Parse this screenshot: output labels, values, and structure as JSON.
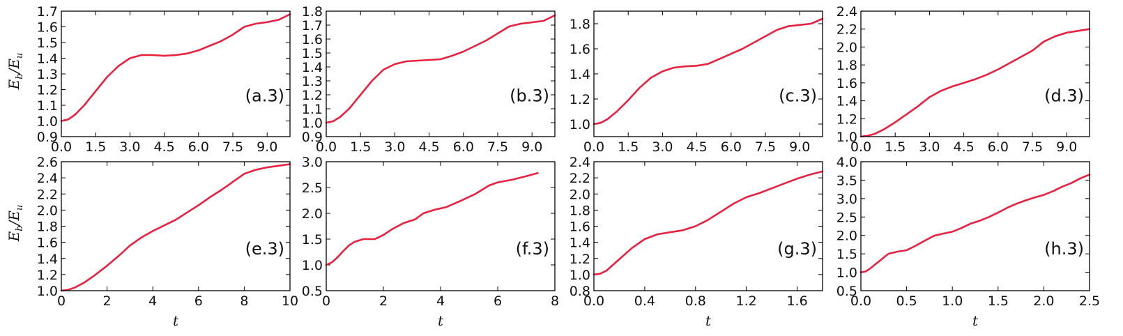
{
  "figure": {
    "ylabel": "E_b / E_u",
    "ylabel_main": "E",
    "ylabel_sub1": "b",
    "ylabel_sep": "/E",
    "ylabel_sub2": "u",
    "xlabel": "t",
    "line_color": "#e8213f",
    "frame_color": "#000000"
  },
  "chart_data": [
    {
      "type": "line",
      "panel": "(a.3)",
      "xlabel": "",
      "ylabel": "E_b/E_u",
      "xlim": [
        0,
        10
      ],
      "ylim": [
        0.9,
        1.7
      ],
      "xticks": [
        "0.0",
        "1.5",
        "3.0",
        "4.5",
        "6.0",
        "7.5",
        "9.0"
      ],
      "yticks": [
        "0.9",
        "1.0",
        "1.1",
        "1.2",
        "1.3",
        "1.4",
        "1.5",
        "1.6",
        "1.7"
      ],
      "x": [
        0,
        0.3,
        0.6,
        1,
        1.5,
        2,
        2.5,
        3,
        3.5,
        4,
        4.5,
        5,
        5.5,
        6,
        6.5,
        7,
        7.5,
        8,
        8.5,
        9,
        9.5,
        10
      ],
      "y": [
        1.0,
        1.01,
        1.04,
        1.1,
        1.19,
        1.28,
        1.35,
        1.4,
        1.42,
        1.42,
        1.415,
        1.42,
        1.43,
        1.45,
        1.48,
        1.51,
        1.55,
        1.6,
        1.62,
        1.63,
        1.645,
        1.68
      ]
    },
    {
      "type": "line",
      "panel": "(b.3)",
      "xlabel": "",
      "ylabel": "",
      "xlim": [
        0,
        10
      ],
      "ylim": [
        0.9,
        1.8
      ],
      "xticks": [
        "0.0",
        "1.5",
        "3.0",
        "4.5",
        "6.0",
        "7.5",
        "9.0"
      ],
      "yticks": [
        "0.9",
        "1.0",
        "1.1",
        "1.2",
        "1.3",
        "1.4",
        "1.5",
        "1.6",
        "1.7",
        "1.8"
      ],
      "x": [
        0,
        0.3,
        0.6,
        1,
        1.5,
        2,
        2.5,
        3,
        3.5,
        4,
        4.5,
        5,
        5.5,
        6,
        6.5,
        7,
        7.5,
        8,
        8.5,
        9,
        9.5,
        10
      ],
      "y": [
        1.0,
        1.01,
        1.04,
        1.1,
        1.2,
        1.3,
        1.38,
        1.42,
        1.44,
        1.445,
        1.45,
        1.455,
        1.48,
        1.51,
        1.55,
        1.59,
        1.64,
        1.69,
        1.71,
        1.72,
        1.73,
        1.77
      ]
    },
    {
      "type": "line",
      "panel": "(c.3)",
      "xlabel": "",
      "ylabel": "",
      "xlim": [
        0,
        10
      ],
      "ylim": [
        0.9,
        1.9
      ],
      "xticks": [
        "0.0",
        "1.5",
        "3.0",
        "4.5",
        "6.0",
        "7.5",
        "9.0"
      ],
      "yticks": [
        "1.0",
        "1.2",
        "1.4",
        "1.6",
        "1.8"
      ],
      "x": [
        0,
        0.3,
        0.6,
        1,
        1.5,
        2,
        2.5,
        3,
        3.5,
        4,
        4.5,
        5,
        5.5,
        6,
        6.5,
        7,
        7.5,
        8,
        8.5,
        9,
        9.5,
        10
      ],
      "y": [
        1.0,
        1.01,
        1.04,
        1.1,
        1.19,
        1.29,
        1.37,
        1.42,
        1.45,
        1.46,
        1.465,
        1.48,
        1.52,
        1.56,
        1.6,
        1.65,
        1.7,
        1.75,
        1.78,
        1.79,
        1.8,
        1.84
      ]
    },
    {
      "type": "line",
      "panel": "(d.3)",
      "xlabel": "",
      "ylabel": "",
      "xlim": [
        0,
        10
      ],
      "ylim": [
        1.0,
        2.4
      ],
      "xticks": [
        "0.0",
        "1.5",
        "3.0",
        "4.5",
        "6.0",
        "7.5",
        "9.0"
      ],
      "yticks": [
        "1.0",
        "1.2",
        "1.4",
        "1.6",
        "1.8",
        "2.0",
        "2.2",
        "2.4"
      ],
      "x": [
        0,
        0.3,
        0.6,
        1,
        1.5,
        2,
        2.5,
        3,
        3.5,
        4,
        4.5,
        5,
        5.5,
        6,
        6.5,
        7,
        7.5,
        8,
        8.5,
        9,
        9.5,
        10
      ],
      "y": [
        1.0,
        1.01,
        1.03,
        1.08,
        1.16,
        1.25,
        1.34,
        1.44,
        1.51,
        1.56,
        1.6,
        1.64,
        1.69,
        1.75,
        1.82,
        1.89,
        1.96,
        2.06,
        2.12,
        2.16,
        2.18,
        2.2
      ]
    },
    {
      "type": "line",
      "panel": "(e.3)",
      "xlabel": "t",
      "ylabel": "E_b/E_u",
      "xlim": [
        0,
        10
      ],
      "ylim": [
        1.0,
        2.6
      ],
      "xticks": [
        "0",
        "2",
        "4",
        "6",
        "8",
        "10"
      ],
      "yticks": [
        "1.0",
        "1.2",
        "1.4",
        "1.6",
        "1.8",
        "2.0",
        "2.2",
        "2.4",
        "2.6"
      ],
      "x": [
        0,
        0.3,
        0.6,
        1,
        1.5,
        2,
        2.5,
        3,
        3.5,
        4,
        4.5,
        5,
        5.5,
        6,
        6.5,
        7,
        7.5,
        8,
        8.5,
        9,
        9.5,
        10
      ],
      "y": [
        1.0,
        1.01,
        1.04,
        1.1,
        1.2,
        1.31,
        1.43,
        1.56,
        1.66,
        1.74,
        1.81,
        1.88,
        1.97,
        2.06,
        2.16,
        2.25,
        2.35,
        2.45,
        2.5,
        2.53,
        2.55,
        2.57
      ]
    },
    {
      "type": "line",
      "panel": "(f.3)",
      "xlabel": "t",
      "ylabel": "",
      "xlim": [
        0,
        8
      ],
      "ylim": [
        0.5,
        3.0
      ],
      "xticks": [
        "0",
        "2",
        "4",
        "6",
        "8"
      ],
      "yticks": [
        "0.5",
        "1.0",
        "1.5",
        "2.0",
        "2.5",
        "3.0"
      ],
      "x": [
        0,
        0.2,
        0.4,
        0.6,
        0.8,
        1,
        1.3,
        1.7,
        2,
        2.3,
        2.7,
        3.1,
        3.4,
        3.8,
        4.2,
        4.7,
        5.2,
        5.7,
        6,
        6.5,
        7,
        7.4
      ],
      "y": [
        1.0,
        1.05,
        1.15,
        1.27,
        1.38,
        1.45,
        1.5,
        1.5,
        1.58,
        1.69,
        1.81,
        1.88,
        2.0,
        2.07,
        2.12,
        2.24,
        2.37,
        2.54,
        2.6,
        2.65,
        2.72,
        2.78
      ]
    },
    {
      "type": "line",
      "panel": "(g.3)",
      "xlabel": "t",
      "ylabel": "",
      "xlim": [
        0,
        1.8
      ],
      "ylim": [
        0.8,
        2.4
      ],
      "xticks": [
        "0.0",
        "0.4",
        "0.8",
        "1.2",
        "1.6"
      ],
      "yticks": [
        "0.8",
        "1.0",
        "1.2",
        "1.4",
        "1.6",
        "1.8",
        "2.0",
        "2.2",
        "2.4"
      ],
      "x": [
        0,
        0.05,
        0.1,
        0.2,
        0.3,
        0.4,
        0.5,
        0.6,
        0.7,
        0.8,
        0.9,
        1.0,
        1.1,
        1.2,
        1.3,
        1.4,
        1.5,
        1.6,
        1.7,
        1.8
      ],
      "y": [
        1.0,
        1.01,
        1.05,
        1.19,
        1.33,
        1.44,
        1.5,
        1.525,
        1.55,
        1.6,
        1.68,
        1.78,
        1.88,
        1.96,
        2.01,
        2.07,
        2.13,
        2.19,
        2.24,
        2.28
      ]
    },
    {
      "type": "line",
      "panel": "(h.3)",
      "xlabel": "t",
      "ylabel": "",
      "xlim": [
        0,
        2.5
      ],
      "ylim": [
        0.5,
        4.0
      ],
      "xticks": [
        "0.0",
        "0.5",
        "1.0",
        "1.5",
        "2.0",
        "2.5"
      ],
      "yticks": [
        "0.5",
        "1.0",
        "1.5",
        "2.0",
        "2.5",
        "3.0",
        "3.5",
        "4.0"
      ],
      "x": [
        0,
        0.05,
        0.1,
        0.2,
        0.3,
        0.4,
        0.5,
        0.6,
        0.7,
        0.8,
        0.9,
        1.0,
        1.1,
        1.2,
        1.3,
        1.4,
        1.5,
        1.6,
        1.7,
        1.8,
        1.9,
        2.0,
        2.1,
        2.2,
        2.3,
        2.4,
        2.5
      ],
      "y": [
        1.0,
        1.02,
        1.1,
        1.3,
        1.5,
        1.56,
        1.6,
        1.72,
        1.86,
        1.99,
        2.05,
        2.1,
        2.2,
        2.32,
        2.4,
        2.5,
        2.62,
        2.75,
        2.86,
        2.95,
        3.03,
        3.1,
        3.2,
        3.32,
        3.42,
        3.55,
        3.65
      ]
    }
  ]
}
